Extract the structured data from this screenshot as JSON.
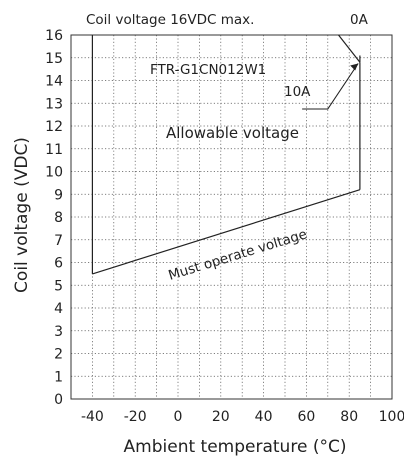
{
  "chart_data": {
    "type": "line",
    "title": "Coil voltage 16VDC max.",
    "xlabel": "Ambient temperature (°C)",
    "ylabel": "Coil voltage (VDC)",
    "xlim": [
      -50,
      100
    ],
    "ylim": [
      0,
      16
    ],
    "xticks": [
      -40,
      -20,
      0,
      20,
      40,
      60,
      80,
      100
    ],
    "yticks": [
      0,
      1,
      2,
      3,
      4,
      5,
      6,
      7,
      8,
      9,
      10,
      11,
      12,
      13,
      14,
      15,
      16
    ],
    "grid": true,
    "series": [
      {
        "name": "Must operate voltage",
        "x": [
          -40,
          85
        ],
        "y": [
          5.5,
          9.2
        ]
      },
      {
        "name": "0A",
        "x": [
          -40,
          -40
        ],
        "y": [
          16,
          5.5
        ]
      },
      {
        "name": "0A",
        "x": [
          85,
          85
        ],
        "y": [
          9.2,
          14.8
        ]
      },
      {
        "name": "0A",
        "x": [
          85,
          75
        ],
        "y": [
          14.8,
          16
        ]
      },
      {
        "name": "10A",
        "x": [
          85,
          85
        ],
        "y": [
          14.8,
          15.1
        ]
      }
    ],
    "annotations": {
      "model": "FTR-G1CN012W1",
      "region": "Allowable voltage",
      "line_0A": "0A",
      "line_10A": "10A",
      "must_operate": "Must operate voltage"
    }
  }
}
